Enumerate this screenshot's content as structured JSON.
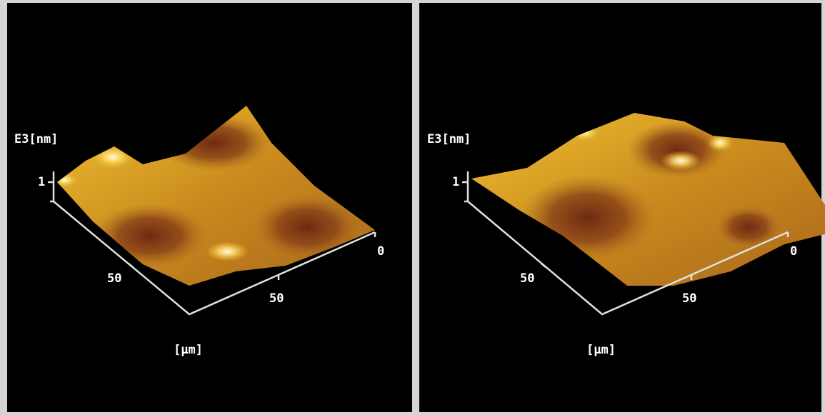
{
  "panels": [
    {
      "z_label": "E3[nm]",
      "z_tick": "1",
      "x_tick_far": "0",
      "x_tick_near": "50",
      "y_tick": "50",
      "unit_label": "[μm]"
    },
    {
      "z_label": "E3[nm]",
      "z_tick": "1",
      "x_tick_far": "0",
      "x_tick_near": "50",
      "y_tick": "50",
      "unit_label": "[μm]"
    }
  ]
}
